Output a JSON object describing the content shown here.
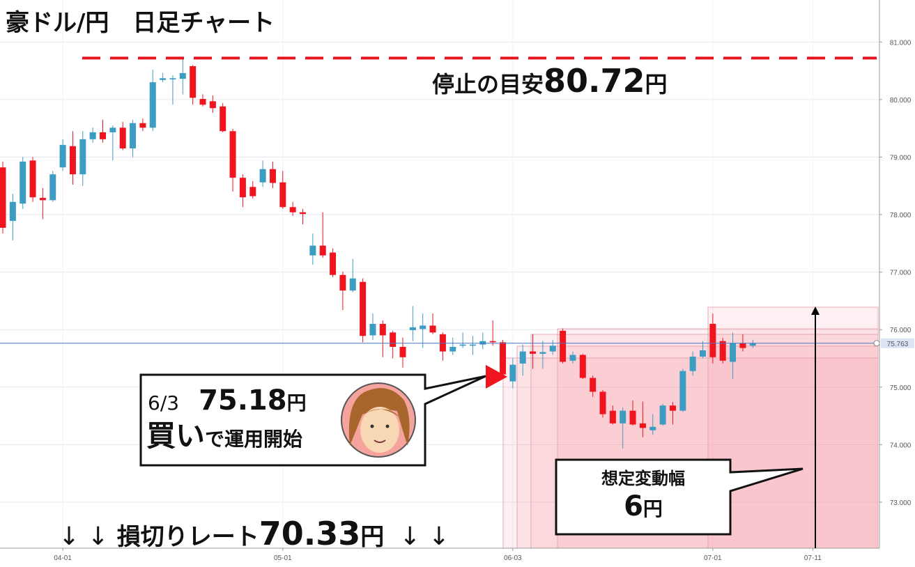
{
  "chart_data": {
    "type": "candlestick",
    "title": "豪ドル/円　日足チャート",
    "categories": [
      null,
      null,
      null,
      null,
      null,
      null,
      "04-01",
      null,
      null,
      null,
      null,
      null,
      null,
      null,
      null,
      null,
      null,
      null,
      null,
      null,
      null,
      null,
      null,
      null,
      null,
      null,
      null,
      null,
      "05-01",
      null,
      null,
      null,
      null,
      null,
      null,
      null,
      null,
      null,
      null,
      null,
      null,
      null,
      null,
      null,
      null,
      null,
      null,
      null,
      null,
      null,
      null,
      "06-03",
      null,
      null,
      null,
      null,
      null,
      null,
      null,
      null,
      null,
      null,
      null,
      null,
      null,
      null,
      null,
      null,
      null,
      null,
      null,
      "07-01",
      null,
      null,
      null,
      null,
      null,
      null,
      null,
      null,
      null,
      "07-11"
    ],
    "open": [
      78.82,
      77.89,
      78.19,
      78.94,
      78.29,
      78.25,
      78.82,
      79.19,
      78.7,
      79.31,
      79.43,
      79.43,
      79.51,
      79.15,
      79.59,
      79.51,
      80.34,
      80.35,
      80.36,
      80.58,
      80.01,
      79.97,
      79.88,
      79.45,
      78.64,
      78.48,
      78.56,
      78.79,
      78.56,
      78.13,
      78.04,
      77.29,
      77.46,
      77.34,
      76.95,
      76.68,
      76.83,
      75.9,
      76.1,
      75.95,
      75.7,
      75.99,
      76.01,
      76.07,
      75.92,
      75.62,
      75.72,
      75.72,
      75.74,
      75.8,
      75.78,
      75.1,
      75.41,
      75.62,
      75.58,
      75.62,
      75.98,
      75.46,
      75.56,
      75.16,
      74.92,
      74.59,
      74.37,
      74.59,
      74.37,
      74.25,
      74.35,
      74.68,
      74.59,
      75.28,
      75.53,
      76.1,
      75.8,
      75.44,
      75.76,
      75.72,
      null,
      null,
      null,
      null,
      null,
      null
    ],
    "high": [
      78.92,
      78.36,
      79.0,
      79.0,
      78.46,
      78.76,
      79.31,
      79.45,
      79.45,
      79.51,
      79.65,
      79.55,
      79.61,
      79.65,
      79.67,
      80.52,
      80.46,
      80.42,
      80.7,
      80.6,
      80.09,
      80.07,
      79.94,
      79.49,
      78.7,
      78.58,
      78.94,
      78.92,
      78.76,
      78.22,
      78.1,
      77.67,
      78.04,
      77.41,
      77.01,
      77.23,
      76.89,
      76.28,
      76.16,
      75.98,
      75.86,
      76.41,
      76.28,
      76.28,
      75.95,
      75.86,
      75.95,
      75.89,
      75.95,
      76.16,
      75.82,
      75.5,
      75.74,
      75.92,
      75.8,
      75.82,
      76.02,
      75.62,
      75.58,
      75.2,
      74.95,
      74.68,
      74.65,
      74.77,
      74.75,
      74.53,
      74.71,
      74.74,
      75.32,
      75.62,
      75.8,
      76.28,
      75.86,
      75.95,
      75.92,
      75.82,
      null,
      null,
      null,
      null,
      null,
      null
    ],
    "low": [
      77.67,
      77.55,
      78.1,
      78.22,
      77.92,
      78.22,
      78.76,
      78.52,
      78.5,
      79.25,
      79.25,
      78.94,
      79.12,
      79.0,
      79.45,
      79.45,
      80.3,
      79.91,
      80.09,
      79.91,
      79.88,
      79.77,
      79.43,
      78.4,
      78.13,
      78.28,
      78.48,
      78.46,
      78.1,
      77.98,
      77.83,
      77.13,
      77.25,
      76.91,
      76.34,
      76.65,
      75.78,
      75.82,
      75.52,
      75.5,
      75.34,
      75.8,
      75.68,
      75.92,
      75.46,
      75.56,
      75.68,
      75.56,
      75.66,
      75.72,
      75.14,
      74.98,
      75.2,
      75.32,
      75.32,
      75.56,
      75.41,
      75.41,
      75.14,
      74.83,
      74.47,
      74.35,
      73.93,
      74.33,
      74.13,
      74.17,
      74.33,
      74.35,
      74.57,
      75.2,
      75.5,
      75.41,
      75.41,
      75.14,
      75.62,
      75.68,
      null,
      null,
      null,
      null,
      null,
      null
    ],
    "close": [
      77.77,
      78.22,
      78.92,
      78.3,
      78.25,
      78.7,
      79.21,
      78.7,
      79.31,
      79.43,
      79.31,
      79.51,
      79.15,
      79.59,
      79.51,
      80.3,
      80.37,
      80.37,
      80.46,
      80.03,
      79.91,
      79.85,
      79.45,
      78.64,
      78.3,
      78.32,
      78.79,
      78.55,
      78.13,
      78.04,
      78.01,
      77.46,
      77.29,
      76.95,
      76.68,
      76.89,
      75.89,
      76.1,
      75.9,
      75.7,
      75.52,
      76.04,
      76.07,
      75.95,
      75.62,
      75.7,
      75.74,
      75.74,
      75.8,
      75.78,
      75.22,
      75.39,
      75.62,
      75.58,
      75.61,
      75.72,
      75.44,
      75.56,
      75.16,
      74.92,
      74.53,
      74.37,
      74.59,
      74.35,
      74.29,
      74.31,
      74.68,
      74.59,
      75.28,
      75.53,
      75.64,
      75.52,
      75.46,
      75.76,
      75.68,
      75.76,
      null,
      null,
      null,
      null,
      null,
      null
    ],
    "up_color": "#3d9cc2",
    "down_color": "#f0141e",
    "ylim": [
      72.2,
      81.73
    ],
    "yticks": [
      {
        "value": 73,
        "label": "73.000"
      },
      {
        "value": 74,
        "label": "74.000"
      },
      {
        "value": 75,
        "label": "75.000"
      },
      {
        "value": 76,
        "label": "76.000"
      },
      {
        "value": 77,
        "label": "77.000"
      },
      {
        "value": 78,
        "label": "78.000"
      },
      {
        "value": 79,
        "label": "79.000"
      },
      {
        "value": 80,
        "label": "80.000"
      },
      {
        "value": 81,
        "label": "81.000"
      }
    ],
    "grid": true,
    "last_price": 75.763,
    "last_price_color": "#4a72c8",
    "stop": {
      "text": "停止の目安",
      "value": 80.72,
      "unit": "円",
      "color": "#e8141e"
    },
    "entry": {
      "date": "6/3",
      "price": 75.18,
      "unit": "円",
      "action": "買い",
      "rest": "で運用開始",
      "color": "#f0141e"
    },
    "range": {
      "label": "想定変動幅",
      "value": 6,
      "unit": "円"
    },
    "stop_loss": {
      "arrows_left": "↓ ↓",
      "label": "損切りレート",
      "value": 70.33,
      "unit": "円",
      "arrows_right": "↓ ↓"
    }
  }
}
